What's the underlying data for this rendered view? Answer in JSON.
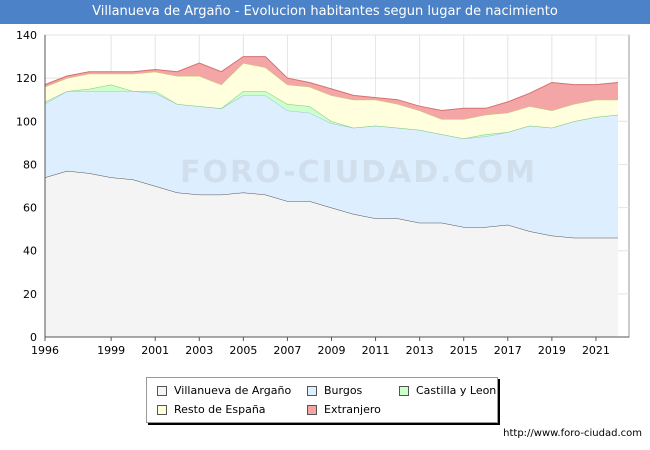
{
  "header": {
    "title": "Villanueva de Argaño - Evolucion habitantes segun lugar de nacimiento"
  },
  "watermark": "FORO-CIUDAD.COM",
  "footer": {
    "url": "http://www.foro-ciudad.com"
  },
  "chart_data": {
    "type": "area",
    "title": "Villanueva de Argaño - Evolucion habitantes segun lugar de nacimiento",
    "xlabel": "",
    "ylabel": "",
    "x": [
      1996,
      1997,
      1998,
      1999,
      2000,
      2001,
      2002,
      2003,
      2004,
      2005,
      2006,
      2007,
      2008,
      2009,
      2010,
      2011,
      2012,
      2013,
      2014,
      2015,
      2016,
      2017,
      2018,
      2019,
      2020,
      2021,
      2022
    ],
    "xticks": [
      "1996",
      "1999",
      "2001",
      "2003",
      "2005",
      "2007",
      "2009",
      "2011",
      "2013",
      "2015",
      "2017",
      "2019",
      "2021"
    ],
    "xtick_values": [
      1996,
      1999,
      2001,
      2003,
      2005,
      2007,
      2009,
      2011,
      2013,
      2015,
      2017,
      2019,
      2021
    ],
    "yticks": [
      "0",
      "20",
      "40",
      "60",
      "80",
      "100",
      "120",
      "140"
    ],
    "xlim": [
      1996,
      2022.5
    ],
    "ylim": [
      0,
      140
    ],
    "grid": true,
    "stacked": true,
    "legend_position": "bottom",
    "series": [
      {
        "name": "Villanueva de Argaño",
        "color": "#f4f4f4",
        "line": "#555555",
        "values": [
          74,
          77,
          76,
          74,
          73,
          70,
          67,
          66,
          66,
          67,
          66,
          63,
          63,
          60,
          57,
          55,
          55,
          53,
          53,
          51,
          51,
          52,
          49,
          47,
          46,
          46,
          46
        ]
      },
      {
        "name": "Burgos",
        "color": "#ddeeff",
        "line": "#9fc3e8",
        "values": [
          34,
          37,
          38,
          40,
          41,
          43,
          41,
          41,
          40,
          45,
          46,
          42,
          41,
          39,
          40,
          43,
          42,
          43,
          41,
          41,
          42,
          43,
          49,
          50,
          54,
          56,
          57
        ]
      },
      {
        "name": "Castilla y Leon",
        "color": "#ccffcc",
        "line": "#7cc97c",
        "values": [
          1,
          0,
          1,
          3,
          0,
          1,
          0,
          0,
          0,
          2,
          2,
          3,
          3,
          1,
          0,
          0,
          0,
          0,
          0,
          0,
          1,
          0,
          0,
          0,
          0,
          0,
          0
        ]
      },
      {
        "name": "Resto de España",
        "color": "#ffffdd",
        "line": "#c8c87a",
        "values": [
          7,
          6,
          7,
          5,
          8,
          9,
          13,
          14,
          11,
          13,
          11,
          9,
          9,
          12,
          13,
          12,
          11,
          9,
          7,
          9,
          9,
          9,
          9,
          8,
          8,
          8,
          7
        ]
      },
      {
        "name": "Extranjero",
        "color": "#f4a6a6",
        "line": "#d87070",
        "values": [
          1,
          1,
          1,
          1,
          1,
          1,
          2,
          6,
          6,
          3,
          5,
          3,
          2,
          3,
          2,
          1,
          2,
          2,
          4,
          5,
          3,
          5,
          6,
          13,
          9,
          7,
          8
        ]
      }
    ]
  },
  "legend": {
    "items": [
      {
        "label": "Villanueva de Argaño",
        "color": "#f4f4f4"
      },
      {
        "label": "Burgos",
        "color": "#ddeeff"
      },
      {
        "label": "Castilla y Leon",
        "color": "#ccffcc"
      },
      {
        "label": "Resto de España",
        "color": "#ffffdd"
      },
      {
        "label": "Extranjero",
        "color": "#f4a6a6"
      }
    ]
  }
}
